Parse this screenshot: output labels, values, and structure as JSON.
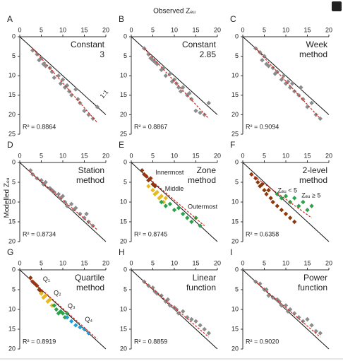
{
  "x_label": "Observed Zₑᵤ",
  "y_label": "Modelled Zₑᵤ",
  "chart_data": [
    {
      "type": "scatter",
      "label": "A",
      "title": [
        "Constant",
        "3"
      ],
      "r2": "R² = 0.8864",
      "line_label": "1:1",
      "xlim": [
        0,
        20
      ],
      "ylim": [
        0,
        25
      ],
      "xticks": [
        0,
        5,
        10,
        15,
        20
      ],
      "yticks": [
        0,
        5,
        10,
        15,
        20,
        25
      ],
      "series": [
        {
          "color": "#8c8c8c",
          "x": [
            3,
            4,
            4.5,
            5,
            5.5,
            6,
            7,
            7.5,
            8,
            9,
            9.5,
            10,
            10.5,
            11,
            11.5,
            12,
            13,
            13.5,
            14,
            15,
            16,
            17,
            18
          ],
          "values": [
            3.5,
            4.5,
            6,
            5.5,
            7,
            7.5,
            8,
            9,
            10.5,
            10,
            12,
            11,
            13,
            12.5,
            14,
            15,
            13.5,
            16,
            17,
            19,
            20,
            21,
            18
          ]
        }
      ],
      "fit": {
        "x": [
          3,
          18
        ],
        "y": [
          3,
          22
        ]
      }
    },
    {
      "type": "scatter",
      "label": "B",
      "title": [
        "Constant",
        "2.85"
      ],
      "r2": "R² = 0.8867",
      "xlim": [
        0,
        20
      ],
      "ylim": [
        0,
        25
      ],
      "xticks": [
        0,
        5,
        10,
        15,
        20
      ],
      "yticks": [
        0,
        5,
        10,
        15,
        20,
        25
      ],
      "series": [
        {
          "color": "#8c8c8c",
          "x": [
            3,
            4,
            4.5,
            5,
            5.5,
            6,
            7,
            7.5,
            8,
            9,
            9.5,
            10,
            10.5,
            11,
            11.5,
            12,
            13,
            13.5,
            14,
            15,
            16,
            17,
            18
          ],
          "values": [
            3,
            4.5,
            5.5,
            6,
            6.5,
            7,
            8.5,
            8,
            10,
            9.5,
            11.5,
            11,
            12,
            13,
            14,
            13,
            15,
            14.5,
            16,
            19,
            19.5,
            20,
            17
          ]
        }
      ],
      "fit": {
        "x": [
          3,
          18
        ],
        "y": [
          3,
          21
        ]
      }
    },
    {
      "type": "scatter",
      "label": "C",
      "title": [
        "Week",
        "method"
      ],
      "r2": "R² = 0.9094",
      "xlim": [
        0,
        20
      ],
      "ylim": [
        0,
        25
      ],
      "xticks": [
        0,
        5,
        10,
        15,
        20
      ],
      "yticks": [
        0,
        5,
        10,
        15,
        20,
        25
      ],
      "series": [
        {
          "color": "#8c8c8c",
          "x": [
            3,
            4,
            4.5,
            5,
            5.5,
            6,
            7,
            7.5,
            8,
            9,
            9.5,
            10,
            10.5,
            11,
            11.5,
            12,
            13,
            13.5,
            14,
            15,
            16,
            17,
            18
          ],
          "values": [
            3,
            4,
            6,
            5,
            7,
            7.5,
            8,
            9.5,
            9,
            11,
            10,
            12,
            11.5,
            13,
            12,
            14,
            15,
            13,
            16,
            18,
            17,
            20,
            21
          ]
        }
      ],
      "fit": {
        "x": [
          3,
          18
        ],
        "y": [
          3,
          21
        ]
      }
    },
    {
      "type": "scatter",
      "label": "D",
      "title": [
        "Station",
        "method"
      ],
      "r2": "R² = 0.8734",
      "xlim": [
        0,
        20
      ],
      "ylim": [
        0,
        20
      ],
      "xticks": [
        0,
        5,
        10,
        15,
        20
      ],
      "yticks": [
        0,
        5,
        10,
        15,
        20
      ],
      "series": [
        {
          "color": "#8c8c8c",
          "x": [
            2.5,
            3,
            4,
            5,
            5.5,
            6,
            7,
            7.5,
            8,
            9,
            9.5,
            10,
            10.5,
            11,
            12,
            12.5,
            13,
            14,
            15,
            15.5,
            16,
            17
          ],
          "values": [
            2,
            3,
            4,
            4.5,
            5.5,
            5,
            6.5,
            7,
            7.5,
            8,
            9,
            8.5,
            10,
            11,
            10.5,
            12,
            11.5,
            13,
            14,
            13,
            15,
            16
          ]
        }
      ],
      "fit": {
        "x": [
          2,
          18
        ],
        "y": [
          2,
          17
        ]
      }
    },
    {
      "type": "scatter",
      "label": "E",
      "title": [
        "Zone",
        "method"
      ],
      "r2": "R² = 0.8745",
      "xlim": [
        0,
        20
      ],
      "ylim": [
        0,
        20
      ],
      "xticks": [
        0,
        5,
        10,
        15,
        20
      ],
      "yticks": [
        0,
        5,
        10,
        15,
        20
      ],
      "series": [
        {
          "name": "Innermost",
          "color": "#8b3a0e",
          "x": [
            2.5,
            3,
            3.5,
            4,
            4.5,
            5,
            5.5
          ],
          "values": [
            2,
            3,
            3.5,
            4.5,
            4,
            5.5,
            6
          ]
        },
        {
          "name": "Middle",
          "color": "#e8b820",
          "x": [
            4,
            5,
            5.5,
            6,
            6.5,
            7,
            7.5,
            8
          ],
          "values": [
            6,
            7,
            8,
            7.5,
            9,
            8.5,
            10,
            9
          ]
        },
        {
          "name": "Outermost",
          "color": "#2ca24a",
          "x": [
            7,
            8,
            9,
            10,
            11,
            12,
            13,
            14,
            15,
            16
          ],
          "values": [
            10,
            11,
            10.5,
            12,
            11.5,
            13,
            14,
            15,
            14,
            16
          ]
        }
      ],
      "fit": {
        "x": [
          3,
          17
        ],
        "y": [
          3,
          16
        ]
      }
    },
    {
      "type": "scatter",
      "label": "F",
      "title": [
        "2-level",
        "method"
      ],
      "r2": "R² = 0.6358",
      "xlim": [
        0,
        20
      ],
      "ylim": [
        0,
        20
      ],
      "xticks": [
        0,
        5,
        10,
        15,
        20
      ],
      "yticks": [
        0,
        5,
        10,
        15,
        20
      ],
      "series": [
        {
          "name": "Zₑᵤ < 5",
          "color": "#8b3a0e",
          "x": [
            2,
            3,
            3.5,
            4,
            4.5,
            5,
            5.5,
            6,
            6.5,
            7,
            8,
            9,
            10,
            11,
            12
          ],
          "values": [
            3,
            4,
            5,
            6,
            5.5,
            7,
            8,
            7,
            9,
            10,
            11,
            12,
            13,
            14,
            15
          ]
        },
        {
          "name": "Zₑᵤ ≥ 5",
          "color": "#2ca24a",
          "x": [
            8,
            9,
            10,
            11,
            12,
            13,
            14,
            15,
            16
          ],
          "values": [
            8,
            9,
            8.5,
            10,
            9,
            11,
            10,
            12,
            11
          ]
        }
      ],
      "fit": {
        "x": [
          2,
          16
        ],
        "y": [
          3,
          14
        ]
      }
    },
    {
      "type": "scatter",
      "label": "G",
      "title": [
        "Quartile",
        "method"
      ],
      "r2": "R² = 0.8919",
      "xlim": [
        0,
        20
      ],
      "ylim": [
        0,
        20
      ],
      "xticks": [
        0,
        5,
        10,
        15,
        20
      ],
      "yticks": [
        0,
        5,
        10,
        15,
        20
      ],
      "series": [
        {
          "name": "Q₁",
          "color": "#8b3a0e",
          "x": [
            2.5,
            3,
            3.5,
            4,
            4.5,
            5
          ],
          "values": [
            2,
            3,
            3.5,
            4,
            5,
            5.5
          ]
        },
        {
          "name": "Q₂",
          "color": "#e8b820",
          "x": [
            5,
            5.5,
            6,
            6.5,
            7,
            7.5
          ],
          "values": [
            6,
            7,
            6.5,
            8,
            7.5,
            9
          ]
        },
        {
          "name": "Q₃",
          "color": "#2ca24a",
          "x": [
            8,
            8.5,
            9,
            9.5,
            10,
            10.5,
            11
          ],
          "values": [
            9,
            10,
            11,
            10.5,
            11,
            12,
            11
          ]
        },
        {
          "name": "Q₄",
          "color": "#1fa0d8",
          "x": [
            11,
            12,
            13,
            14,
            15,
            16
          ],
          "values": [
            12,
            13,
            14,
            14.5,
            15,
            16
          ]
        }
      ],
      "fit": {
        "x": [
          2,
          18
        ],
        "y": [
          2,
          17.5
        ]
      }
    },
    {
      "type": "scatter",
      "label": "H",
      "title": [
        "Linear",
        "function"
      ],
      "r2": "R² = 0.8859",
      "xlim": [
        0,
        20
      ],
      "ylim": [
        0,
        20
      ],
      "xticks": [
        0,
        5,
        10,
        15,
        20
      ],
      "yticks": [
        0,
        5,
        10,
        15,
        20
      ],
      "series": [
        {
          "color": "#8c8c8c",
          "x": [
            3,
            4,
            5,
            5.5,
            6,
            7,
            8,
            8.5,
            9,
            10,
            10.5,
            11,
            12,
            13,
            14,
            15,
            16,
            17,
            18
          ],
          "values": [
            3,
            4,
            4.5,
            5.5,
            6,
            6.5,
            8,
            7.5,
            9,
            9.5,
            10,
            11,
            10.5,
            12,
            12.5,
            13,
            14,
            15,
            16
          ]
        }
      ],
      "fit": {
        "x": [
          3,
          18
        ],
        "y": [
          3,
          17
        ]
      }
    },
    {
      "type": "scatter",
      "label": "I",
      "title": [
        "Power",
        "function"
      ],
      "r2": "R² = 0.9020",
      "xlim": [
        0,
        20
      ],
      "ylim": [
        0,
        20
      ],
      "xticks": [
        0,
        5,
        10,
        15,
        20
      ],
      "yticks": [
        0,
        5,
        10,
        15,
        20
      ],
      "series": [
        {
          "color": "#8c8c8c",
          "x": [
            3,
            4,
            5,
            5.5,
            6,
            7,
            8,
            8.5,
            9,
            10,
            10.5,
            11,
            12,
            13,
            14,
            15,
            16,
            17,
            18
          ],
          "values": [
            3,
            3.5,
            5,
            5,
            6.5,
            7,
            7.5,
            8,
            9,
            9,
            10.5,
            10,
            11,
            12,
            13,
            12.5,
            14,
            15.5,
            16
          ]
        }
      ],
      "fit": {
        "x": [
          3,
          18
        ],
        "y": [
          3,
          17
        ]
      }
    }
  ]
}
